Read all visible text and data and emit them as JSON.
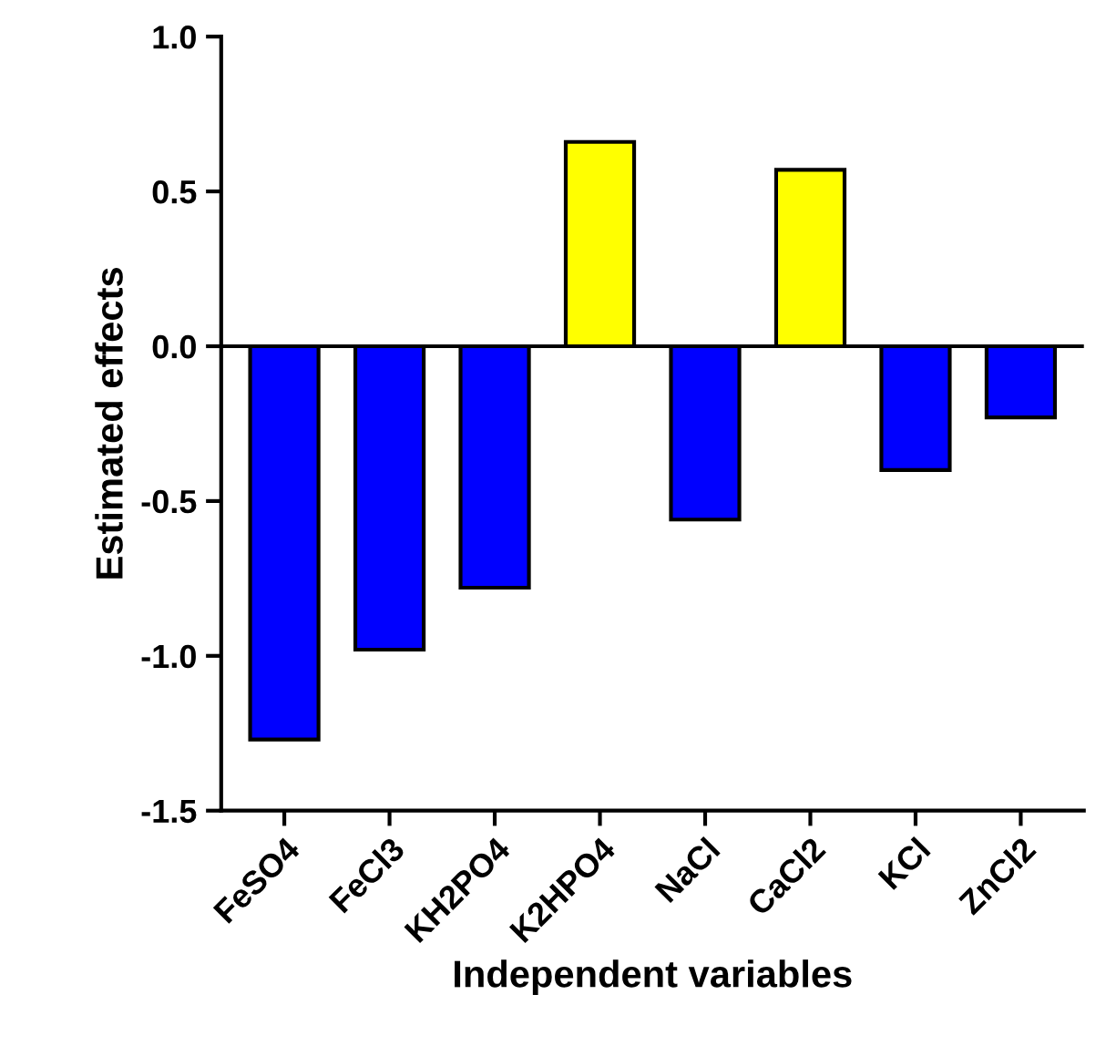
{
  "chart_data": {
    "type": "bar",
    "xlabel": "Independent variables",
    "ylabel": "Estimated effects",
    "categories": [
      "FeSO4",
      "FeCl3",
      "KH2PO4",
      "K2HPO4",
      "NaCl",
      "CaCl2",
      "KCl",
      "ZnCl2"
    ],
    "values": [
      -1.27,
      -0.98,
      -0.78,
      0.66,
      -0.56,
      0.57,
      -0.4,
      -0.23
    ],
    "colors": [
      "#0000ff",
      "#0000ff",
      "#0000ff",
      "#ffff00",
      "#0000ff",
      "#ffff00",
      "#0000ff",
      "#0000ff"
    ],
    "ylim": [
      -1.5,
      1.0
    ],
    "yticks": [
      {
        "value": -1.5,
        "label": "-1.5"
      },
      {
        "value": -1.0,
        "label": "-1.0"
      },
      {
        "value": -0.5,
        "label": "-0.5"
      },
      {
        "value": 0.0,
        "label": "0.0"
      },
      {
        "value": 0.5,
        "label": "0.5"
      },
      {
        "value": 1.0,
        "label": "1.0"
      }
    ],
    "ref_lines": [
      {
        "axis": "y",
        "value": 0,
        "color": "#000000"
      }
    ],
    "grid": false,
    "legend": false
  }
}
